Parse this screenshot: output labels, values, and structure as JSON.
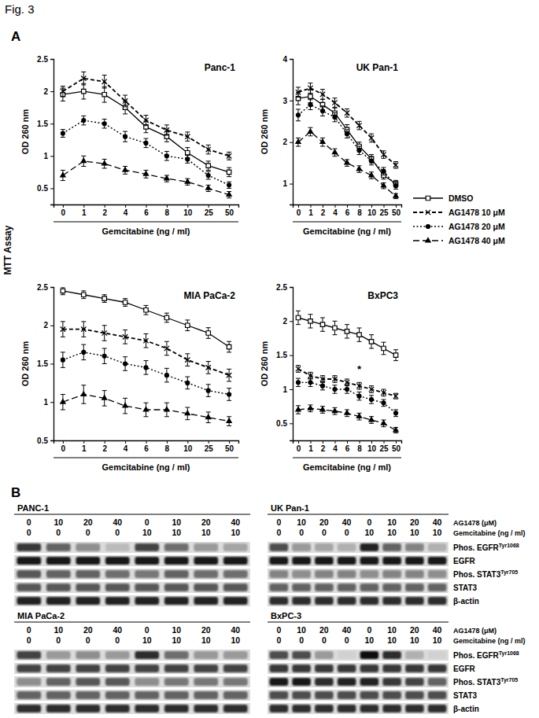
{
  "figure": {
    "title": "Fig. 3",
    "panel_labels": [
      "A",
      "B"
    ],
    "assay_label": "MTT Assay"
  },
  "chart_data": [
    {
      "type": "line",
      "title": "Panc-1",
      "x_label": "Gemcitabine (ng / ml)",
      "y_label": "OD 260 nm",
      "categories": [
        "0",
        "1",
        "2",
        "4",
        "6",
        "8",
        "10",
        "25",
        "50"
      ],
      "ylim": [
        0.25,
        2.5
      ],
      "yticks": [
        0.5,
        1,
        1.5,
        2,
        2.5
      ],
      "series": [
        {
          "name": "DMSO",
          "color": "#000000",
          "marker": "open-square",
          "line_style": "solid",
          "values": [
            1.95,
            2.0,
            1.95,
            1.75,
            1.45,
            1.3,
            1.05,
            0.85,
            0.75
          ],
          "errors": [
            0.1,
            0.12,
            0.12,
            0.1,
            0.09,
            0.08,
            0.08,
            0.07,
            0.07
          ]
        },
        {
          "name": "AG1478 10 μM",
          "color": "#000000",
          "marker": "x",
          "line_style": "dashed",
          "values": [
            2.0,
            2.2,
            2.15,
            1.85,
            1.55,
            1.4,
            1.3,
            1.1,
            1.0
          ],
          "errors": [
            0.08,
            0.1,
            0.1,
            0.09,
            0.08,
            0.08,
            0.07,
            0.07,
            0.06
          ]
        },
        {
          "name": "AG1478 20 μM",
          "color": "#000000",
          "marker": "circle",
          "line_style": "dotted",
          "values": [
            1.35,
            1.55,
            1.5,
            1.3,
            1.2,
            1.0,
            0.95,
            0.7,
            0.55
          ],
          "errors": [
            0.06,
            0.07,
            0.07,
            0.08,
            0.07,
            0.07,
            0.06,
            0.06,
            0.05
          ]
        },
        {
          "name": "AG1478 40 μM",
          "color": "#000000",
          "marker": "triangle",
          "line_style": "longdash",
          "values": [
            0.7,
            0.92,
            0.88,
            0.78,
            0.72,
            0.65,
            0.6,
            0.5,
            0.4
          ],
          "errors": [
            0.08,
            0.08,
            0.07,
            0.06,
            0.06,
            0.05,
            0.05,
            0.05,
            0.05
          ]
        }
      ]
    },
    {
      "type": "line",
      "title": "UK Pan-1",
      "x_label": "Gemcitabine (ng / ml)",
      "y_label": "OD 260 nm",
      "categories": [
        "0",
        "1",
        "2",
        "4",
        "6",
        "8",
        "10",
        "25",
        "50"
      ],
      "ylim": [
        0.5,
        4
      ],
      "yticks": [
        1,
        2,
        3,
        4
      ],
      "legend": "right",
      "series": [
        {
          "name": "DMSO",
          "color": "#000000",
          "marker": "open-square",
          "line_style": "solid",
          "values": [
            3.05,
            3.1,
            2.9,
            2.7,
            2.3,
            1.9,
            1.6,
            1.2,
            1.0
          ],
          "errors": [
            0.15,
            0.15,
            0.13,
            0.12,
            0.12,
            0.1,
            0.1,
            0.09,
            0.08
          ]
        },
        {
          "name": "AG1478 10 μM",
          "color": "#000000",
          "marker": "x",
          "line_style": "dashed",
          "values": [
            3.2,
            3.3,
            3.15,
            2.95,
            2.7,
            2.4,
            2.1,
            1.7,
            1.45
          ],
          "errors": [
            0.12,
            0.12,
            0.12,
            0.11,
            0.1,
            0.1,
            0.1,
            0.09,
            0.08
          ]
        },
        {
          "name": "AG1478 20 μM",
          "color": "#000000",
          "marker": "circle",
          "line_style": "dotted",
          "values": [
            2.65,
            2.9,
            2.75,
            2.6,
            2.2,
            1.8,
            1.55,
            1.3,
            0.95
          ],
          "errors": [
            0.14,
            0.12,
            0.12,
            0.11,
            0.1,
            0.1,
            0.1,
            0.09,
            0.08
          ]
        },
        {
          "name": "AG1478 40 μM",
          "color": "#000000",
          "marker": "triangle",
          "line_style": "longdash",
          "values": [
            2.0,
            2.25,
            2.0,
            1.75,
            1.5,
            1.35,
            1.2,
            0.95,
            0.7
          ],
          "errors": [
            0.1,
            0.1,
            0.1,
            0.09,
            0.08,
            0.08,
            0.08,
            0.07,
            0.06
          ]
        }
      ]
    },
    {
      "type": "line",
      "title": "MIA PaCa-2",
      "x_label": "Gemcitabine (ng / ml)",
      "y_label": "OD 260 nm",
      "categories": [
        "0",
        "1",
        "2",
        "4",
        "6",
        "8",
        "10",
        "25",
        "50"
      ],
      "ylim": [
        0.5,
        2.5
      ],
      "yticks": [
        0.5,
        1,
        1.5,
        2,
        2.5
      ],
      "series": [
        {
          "name": "DMSO",
          "color": "#000000",
          "marker": "open-square",
          "line_style": "solid",
          "values": [
            2.45,
            2.4,
            2.35,
            2.3,
            2.2,
            2.1,
            2.0,
            1.9,
            1.72
          ],
          "errors": [
            0.05,
            0.05,
            0.05,
            0.05,
            0.06,
            0.06,
            0.07,
            0.07,
            0.07
          ]
        },
        {
          "name": "AG1478 10 μM",
          "color": "#000000",
          "marker": "x",
          "line_style": "dashed",
          "values": [
            1.95,
            1.95,
            1.9,
            1.85,
            1.8,
            1.7,
            1.55,
            1.45,
            1.35
          ],
          "errors": [
            0.1,
            0.1,
            0.1,
            0.09,
            0.09,
            0.09,
            0.08,
            0.08,
            0.08
          ]
        },
        {
          "name": "AG1478 20 μM",
          "color": "#000000",
          "marker": "circle",
          "line_style": "dotted",
          "values": [
            1.55,
            1.65,
            1.6,
            1.5,
            1.45,
            1.35,
            1.25,
            1.15,
            1.1
          ],
          "errors": [
            0.1,
            0.1,
            0.1,
            0.09,
            0.09,
            0.09,
            0.08,
            0.08,
            0.08
          ]
        },
        {
          "name": "AG1478 40 μM",
          "color": "#000000",
          "marker": "triangle",
          "line_style": "longdash",
          "values": [
            1.0,
            1.1,
            1.05,
            0.95,
            0.9,
            0.9,
            0.85,
            0.8,
            0.75
          ],
          "errors": [
            0.1,
            0.12,
            0.1,
            0.1,
            0.09,
            0.09,
            0.08,
            0.07,
            0.06
          ]
        }
      ]
    },
    {
      "type": "line",
      "title": "BxPC3",
      "x_label": "Gemcitabine (ng / ml)",
      "y_label": "OD 260 nm",
      "categories": [
        "0",
        "1",
        "2",
        "4",
        "6",
        "8",
        "10",
        "25",
        "50"
      ],
      "ylim": [
        0.25,
        2.5
      ],
      "yticks": [
        0.5,
        1,
        1.5,
        2,
        2.5
      ],
      "annotations": [
        {
          "text": "*",
          "x": "8",
          "y": 1.3
        }
      ],
      "series": [
        {
          "name": "DMSO",
          "color": "#000000",
          "marker": "open-square",
          "line_style": "solid",
          "values": [
            2.05,
            2.0,
            1.95,
            1.9,
            1.85,
            1.8,
            1.7,
            1.6,
            1.5
          ],
          "errors": [
            0.1,
            0.1,
            0.1,
            0.1,
            0.1,
            0.1,
            0.1,
            0.09,
            0.08
          ]
        },
        {
          "name": "AG1478 10 μM",
          "color": "#000000",
          "marker": "x",
          "line_style": "dashed",
          "values": [
            1.3,
            1.2,
            1.15,
            1.15,
            1.1,
            1.05,
            1.0,
            0.95,
            0.9
          ],
          "errors": [
            0.05,
            0.05,
            0.05,
            0.05,
            0.05,
            0.05,
            0.05,
            0.05,
            0.04
          ]
        },
        {
          "name": "AG1478 20 μM",
          "color": "#000000",
          "marker": "circle",
          "line_style": "dotted",
          "values": [
            1.1,
            1.1,
            1.05,
            1.0,
            1.0,
            0.9,
            0.85,
            0.8,
            0.65
          ],
          "errors": [
            0.06,
            0.06,
            0.06,
            0.06,
            0.06,
            0.06,
            0.06,
            0.05,
            0.05
          ]
        },
        {
          "name": "AG1478 40 μM",
          "color": "#000000",
          "marker": "triangle",
          "line_style": "longdash",
          "values": [
            0.7,
            0.72,
            0.7,
            0.68,
            0.65,
            0.6,
            0.55,
            0.5,
            0.4
          ],
          "errors": [
            0.06,
            0.05,
            0.05,
            0.05,
            0.05,
            0.05,
            0.05,
            0.05,
            0.04
          ]
        }
      ]
    }
  ],
  "blots": {
    "intensity_lim": [
      0,
      1
    ],
    "rows": [
      {
        "header_labels": [
          "AG1478 (μM)",
          "Gemcitabine (ng / ml)"
        ],
        "row_labels": [
          {
            "text": "Phos. EGFR",
            "sup": "Tyr1068"
          },
          {
            "text": "EGFR"
          },
          {
            "text": "Phos. STAT3",
            "sup": "Tyr705"
          },
          {
            "text": "STAT3"
          },
          {
            "text": "β-actin"
          }
        ],
        "panels": [
          {
            "title": "PANC-1",
            "ag1478": [
              0,
              10,
              20,
              40,
              0,
              10,
              20,
              40
            ],
            "gemcitabine": [
              0,
              0,
              0,
              0,
              10,
              10,
              10,
              10
            ],
            "bands": [
              [
                0.8,
                0.6,
                0.4,
                0.15,
                0.75,
                0.55,
                0.35,
                0.25
              ],
              [
                0.95,
                0.95,
                0.95,
                0.95,
                0.95,
                0.95,
                0.95,
                0.95
              ],
              [
                0.65,
                0.6,
                0.6,
                0.55,
                0.5,
                0.6,
                0.55,
                0.55
              ],
              [
                0.65,
                0.65,
                0.65,
                0.65,
                0.65,
                0.65,
                0.65,
                0.65
              ],
              [
                0.9,
                0.9,
                0.9,
                0.9,
                0.9,
                0.9,
                0.9,
                0.9
              ]
            ]
          },
          {
            "title": "UK Pan-1",
            "ag1478": [
              0,
              10,
              20,
              40,
              0,
              10,
              20,
              40
            ],
            "gemcitabine": [
              0,
              0,
              0,
              0,
              10,
              10,
              10,
              10
            ],
            "bands": [
              [
                0.7,
                0.35,
                0.25,
                0.2,
                0.9,
                0.6,
                0.45,
                0.2
              ],
              [
                0.95,
                0.95,
                0.95,
                0.95,
                0.95,
                0.95,
                0.95,
                0.95
              ],
              [
                0.45,
                0.4,
                0.45,
                0.45,
                0.4,
                0.45,
                0.45,
                0.4
              ],
              [
                0.6,
                0.6,
                0.6,
                0.6,
                0.6,
                0.6,
                0.6,
                0.6
              ],
              [
                0.85,
                0.85,
                0.85,
                0.85,
                0.85,
                0.85,
                0.85,
                0.85
              ]
            ]
          }
        ]
      },
      {
        "header_labels": [
          "AG1478 (μM)",
          "Gemcitabine (ng / ml)"
        ],
        "row_labels": [
          {
            "text": "Phos. EGFR",
            "sup": "Tyr1068"
          },
          {
            "text": "EGFR"
          },
          {
            "text": "Phos. STAT3",
            "sup": "Tyr705"
          },
          {
            "text": "STAT3"
          },
          {
            "text": "β-actin"
          }
        ],
        "panels": [
          {
            "title": "MIA PaCa-2",
            "ag1478": [
              0,
              10,
              20,
              40,
              0,
              10,
              20,
              40
            ],
            "gemcitabine": [
              0,
              0,
              0,
              0,
              10,
              10,
              10,
              10
            ],
            "bands": [
              [
                0.75,
                0.3,
                0.4,
                0.3,
                0.85,
                0.55,
                0.35,
                0.3
              ],
              [
                0.75,
                0.75,
                0.75,
                0.75,
                0.75,
                0.75,
                0.75,
                0.75
              ],
              [
                0.4,
                0.6,
                0.65,
                0.65,
                0.4,
                0.5,
                0.5,
                0.5
              ],
              [
                0.6,
                0.6,
                0.6,
                0.6,
                0.6,
                0.6,
                0.6,
                0.6
              ],
              [
                0.85,
                0.85,
                0.85,
                0.85,
                0.85,
                0.85,
                0.85,
                0.85
              ]
            ]
          },
          {
            "title": "BxPC-3",
            "ag1478": [
              0,
              10,
              20,
              40,
              0,
              10,
              20,
              40
            ],
            "gemcitabine": [
              0,
              0,
              0,
              0,
              10,
              10,
              10,
              10
            ],
            "bands": [
              [
                0.7,
                0.7,
                0.3,
                0.05,
                1.0,
                0.85,
                0.2,
                0.05
              ],
              [
                0.8,
                0.8,
                0.8,
                0.8,
                0.8,
                0.8,
                0.8,
                0.8
              ],
              [
                0.95,
                0.95,
                0.85,
                0.9,
                0.9,
                0.8,
                0.75,
                0.6
              ],
              [
                0.7,
                0.7,
                0.7,
                0.7,
                0.7,
                0.7,
                0.7,
                0.7
              ],
              [
                0.85,
                0.85,
                0.85,
                0.85,
                0.85,
                0.85,
                0.85,
                0.85
              ]
            ]
          }
        ]
      }
    ]
  }
}
